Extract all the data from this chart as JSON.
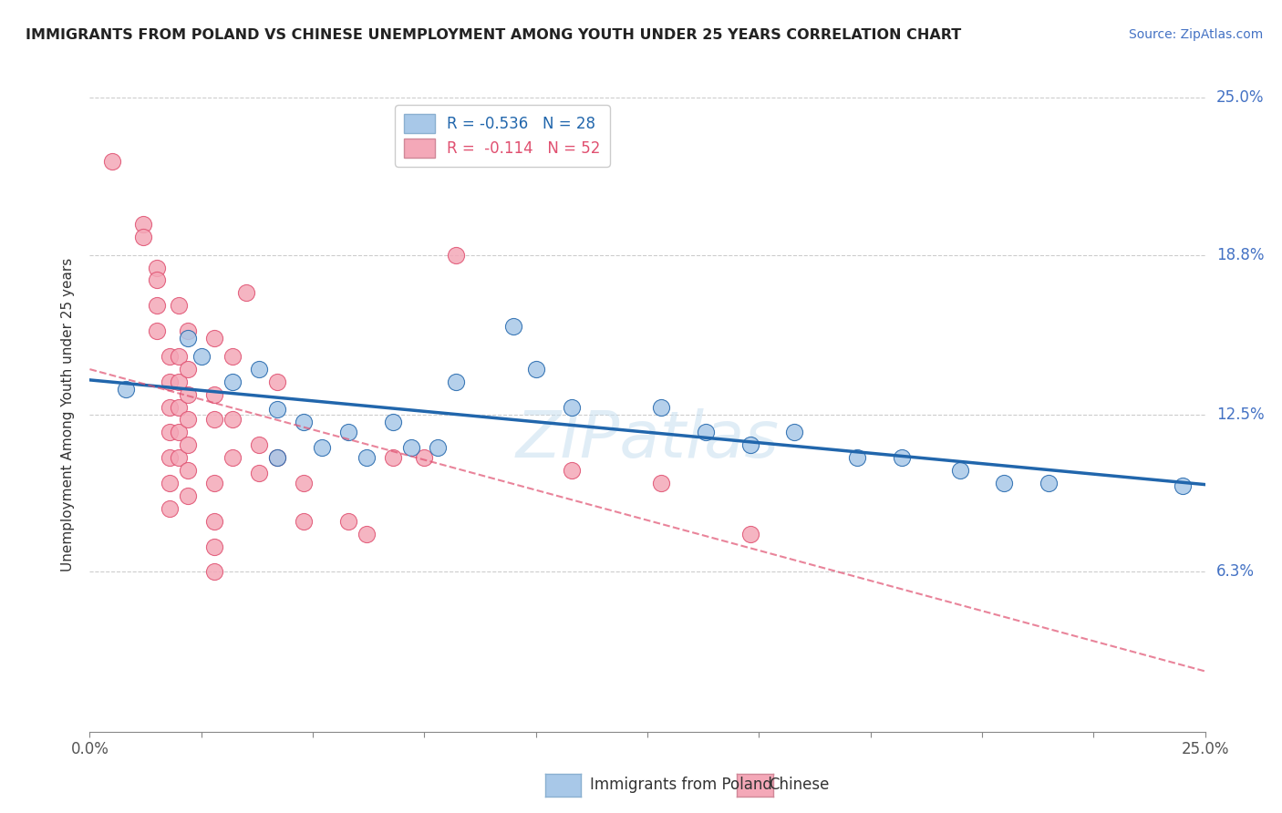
{
  "title": "IMMIGRANTS FROM POLAND VS CHINESE UNEMPLOYMENT AMONG YOUTH UNDER 25 YEARS CORRELATION CHART",
  "source": "Source: ZipAtlas.com",
  "ylabel": "Unemployment Among Youth under 25 years",
  "legend_label_blue": "Immigrants from Poland",
  "legend_label_pink": "Chinese",
  "R_blue": -0.536,
  "N_blue": 28,
  "R_pink": -0.114,
  "N_pink": 52,
  "x_min": 0.0,
  "x_max": 0.25,
  "y_min": 0.0,
  "y_max": 0.25,
  "y_ticks": [
    0.063,
    0.125,
    0.188,
    0.25
  ],
  "y_tick_labels": [
    "6.3%",
    "12.5%",
    "18.8%",
    "25.0%"
  ],
  "x_tick_labels": [
    "0.0%",
    "",
    "",
    "",
    "",
    "",
    "",
    "",
    "",
    "",
    "25.0%"
  ],
  "x_ticks": [
    0.0,
    0.025,
    0.05,
    0.075,
    0.1,
    0.125,
    0.15,
    0.175,
    0.2,
    0.225,
    0.25
  ],
  "color_blue": "#a8c8e8",
  "color_pink": "#f4a8b8",
  "line_blue": "#2166ac",
  "line_pink": "#e05070",
  "background_color": "#ffffff",
  "grid_color": "#cccccc",
  "blue_dots": [
    [
      0.008,
      0.135
    ],
    [
      0.022,
      0.155
    ],
    [
      0.025,
      0.148
    ],
    [
      0.032,
      0.138
    ],
    [
      0.038,
      0.143
    ],
    [
      0.042,
      0.127
    ],
    [
      0.042,
      0.108
    ],
    [
      0.048,
      0.122
    ],
    [
      0.052,
      0.112
    ],
    [
      0.058,
      0.118
    ],
    [
      0.062,
      0.108
    ],
    [
      0.068,
      0.122
    ],
    [
      0.072,
      0.112
    ],
    [
      0.078,
      0.112
    ],
    [
      0.082,
      0.138
    ],
    [
      0.095,
      0.16
    ],
    [
      0.1,
      0.143
    ],
    [
      0.108,
      0.128
    ],
    [
      0.128,
      0.128
    ],
    [
      0.138,
      0.118
    ],
    [
      0.148,
      0.113
    ],
    [
      0.158,
      0.118
    ],
    [
      0.172,
      0.108
    ],
    [
      0.182,
      0.108
    ],
    [
      0.195,
      0.103
    ],
    [
      0.205,
      0.098
    ],
    [
      0.215,
      0.098
    ],
    [
      0.245,
      0.097
    ]
  ],
  "pink_dots": [
    [
      0.005,
      0.225
    ],
    [
      0.012,
      0.2
    ],
    [
      0.012,
      0.195
    ],
    [
      0.015,
      0.183
    ],
    [
      0.015,
      0.178
    ],
    [
      0.015,
      0.168
    ],
    [
      0.015,
      0.158
    ],
    [
      0.018,
      0.148
    ],
    [
      0.018,
      0.138
    ],
    [
      0.018,
      0.128
    ],
    [
      0.018,
      0.118
    ],
    [
      0.018,
      0.108
    ],
    [
      0.018,
      0.098
    ],
    [
      0.018,
      0.088
    ],
    [
      0.02,
      0.148
    ],
    [
      0.02,
      0.138
    ],
    [
      0.02,
      0.128
    ],
    [
      0.02,
      0.118
    ],
    [
      0.02,
      0.108
    ],
    [
      0.02,
      0.168
    ],
    [
      0.022,
      0.158
    ],
    [
      0.022,
      0.143
    ],
    [
      0.022,
      0.133
    ],
    [
      0.022,
      0.123
    ],
    [
      0.022,
      0.113
    ],
    [
      0.022,
      0.103
    ],
    [
      0.022,
      0.093
    ],
    [
      0.028,
      0.155
    ],
    [
      0.028,
      0.133
    ],
    [
      0.028,
      0.123
    ],
    [
      0.028,
      0.098
    ],
    [
      0.028,
      0.083
    ],
    [
      0.028,
      0.073
    ],
    [
      0.028,
      0.063
    ],
    [
      0.032,
      0.148
    ],
    [
      0.032,
      0.123
    ],
    [
      0.032,
      0.108
    ],
    [
      0.035,
      0.173
    ],
    [
      0.038,
      0.113
    ],
    [
      0.038,
      0.102
    ],
    [
      0.042,
      0.138
    ],
    [
      0.042,
      0.108
    ],
    [
      0.048,
      0.098
    ],
    [
      0.048,
      0.083
    ],
    [
      0.058,
      0.083
    ],
    [
      0.062,
      0.078
    ],
    [
      0.068,
      0.108
    ],
    [
      0.075,
      0.108
    ],
    [
      0.082,
      0.188
    ],
    [
      0.108,
      0.103
    ],
    [
      0.128,
      0.098
    ],
    [
      0.148,
      0.078
    ]
  ]
}
